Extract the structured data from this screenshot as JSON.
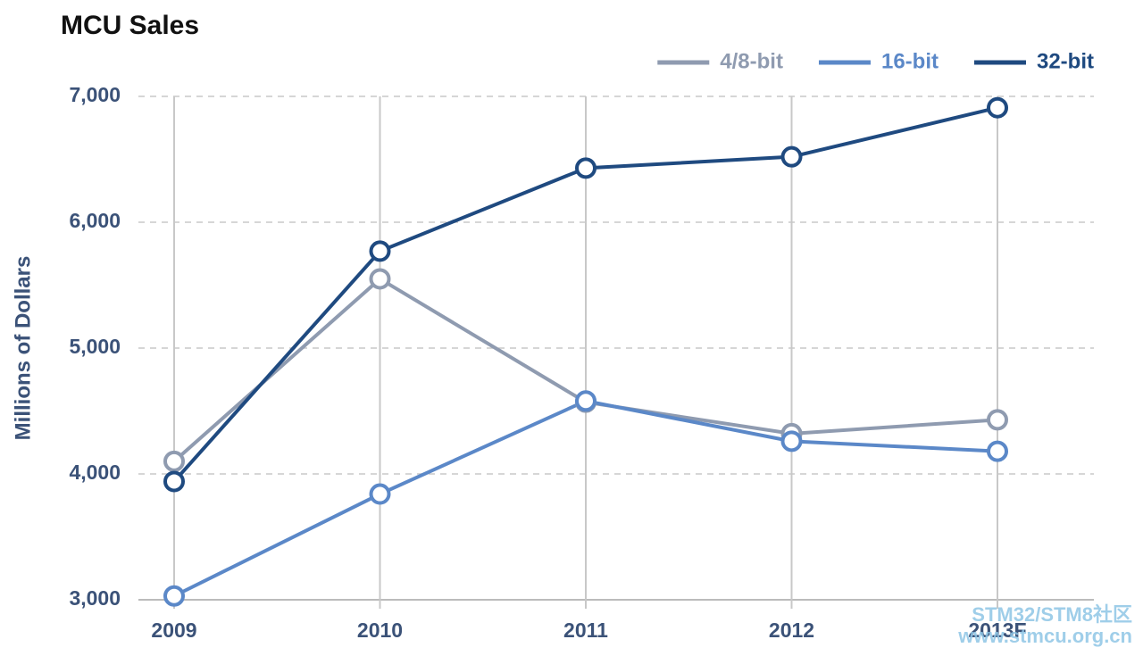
{
  "chart_data": {
    "type": "line",
    "title": "MCU Sales",
    "y_label": "Millions of Dollars",
    "categories": [
      "2009",
      "2010",
      "2011",
      "2012",
      "2013F"
    ],
    "series": [
      {
        "name": "4/8-bit",
        "color": "#8f9bb0",
        "values": [
          4100,
          5550,
          4570,
          4320,
          4430
        ]
      },
      {
        "name": "16-bit",
        "color": "#5b88c8",
        "values": [
          3030,
          3840,
          4580,
          4260,
          4180
        ]
      },
      {
        "name": "32-bit",
        "color": "#1f4a80",
        "values": [
          3940,
          5770,
          6430,
          6520,
          6910
        ]
      }
    ],
    "ylim": [
      3000,
      7000
    ],
    "yticks": [
      {
        "value": 3000,
        "label": "3,000"
      },
      {
        "value": 4000,
        "label": "4,000"
      },
      {
        "value": 5000,
        "label": "5,000"
      },
      {
        "value": 6000,
        "label": "6,000"
      },
      {
        "value": 7000,
        "label": "7,000"
      }
    ],
    "grid": true,
    "legend": "top-right",
    "watermark": [
      "STM32/STM8社区",
      "www.stmcu.org.cn"
    ]
  }
}
